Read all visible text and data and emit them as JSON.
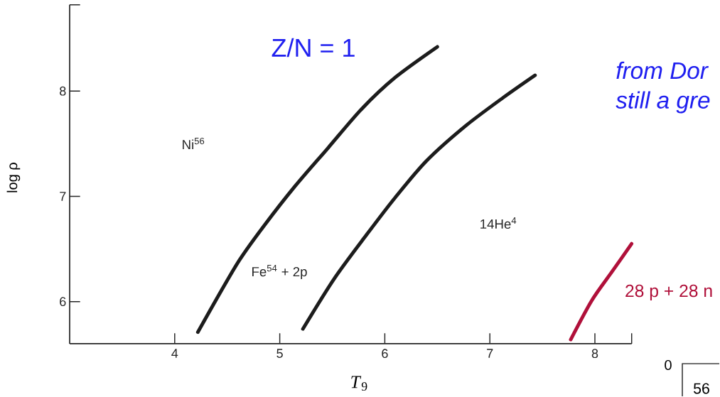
{
  "chart_data": {
    "type": "line",
    "xlabel": "*T*$_{9}$",
    "ylabel": "log ρ",
    "annotations": [
      "Z/N = 1",
      "from Dor",
      "still a gre",
      "Ni$^{56}$",
      "Fe$^{54}$ + 2p",
      "14He$^{4}$",
      "0",
      "56"
    ],
    "series": [
      {
        "color": "#1c1c1c",
        "x": [
          4.22,
          4.43,
          4.62,
          4.85,
          5.14,
          5.46,
          5.78,
          6.1,
          6.5
        ],
        "values": [
          5.71,
          6.08,
          6.4,
          6.72,
          7.09,
          7.46,
          7.83,
          8.13,
          8.42
        ]
      },
      {
        "color": "#1c1c1c",
        "x": [
          5.22,
          5.52,
          5.83,
          6.1,
          6.4,
          6.77,
          7.13,
          7.43
        ],
        "values": [
          5.74,
          6.22,
          6.64,
          6.99,
          7.34,
          7.67,
          7.94,
          8.15
        ]
      },
      {
        "name": "28 p + 28 n",
        "color": "#b0103a",
        "x": [
          7.77,
          7.97,
          8.16,
          8.35
        ],
        "values": [
          5.64,
          6.01,
          6.28,
          6.55
        ]
      }
    ],
    "xlim": [
      3.0,
      8.35
    ],
    "ylim": [
      5.6,
      8.82
    ],
    "xticks": [
      4,
      5,
      6,
      7,
      8,
      {
        "value": 8.35,
        "label": null
      }
    ],
    "yticks": [
      6,
      7,
      8,
      {
        "value": 8.82,
        "label": null
      }
    ],
    "grid": false,
    "legend": false,
    "marker": "none",
    "line_style": "solid"
  }
}
